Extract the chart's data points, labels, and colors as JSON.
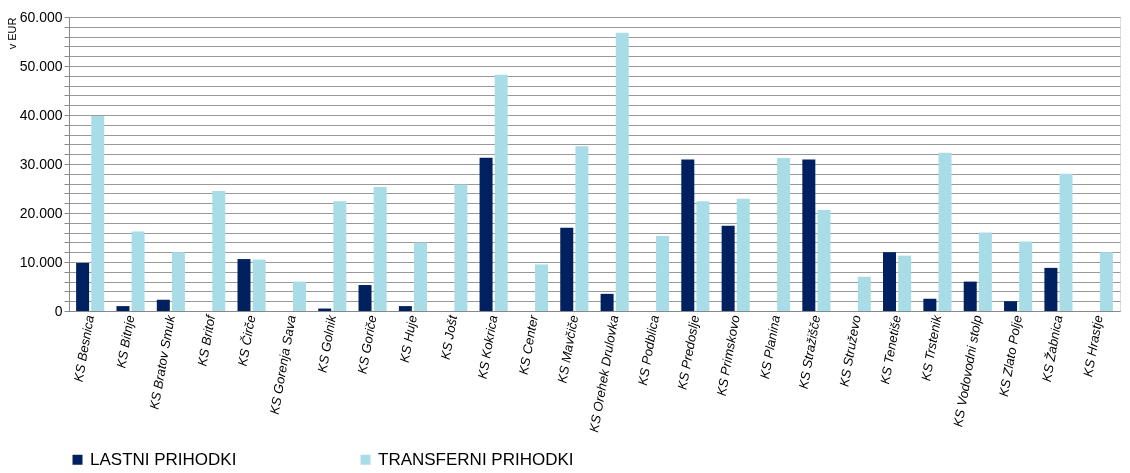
{
  "chart_data": {
    "type": "bar",
    "ylabel": "v EUR",
    "categories": [
      "KS Besnica",
      "KS Bitnje",
      "KS Bratov Smuk",
      "KS Britof",
      "KS Čirče",
      "KS Gorenja Sava",
      "KS Golnik",
      "KS Goriče",
      "KS Huje",
      "KS Jošt",
      "KS Kokrica",
      "KS Center",
      "KS Mavčiče",
      "KS Orehek Drulovka",
      "KS Podblica",
      "KS Predoslje",
      "KS Primskovo",
      "KS Planina",
      "KS Stražišče",
      "KS Struževo",
      "KS Tenetiše",
      "KS Trstenik",
      "KS Vodovodni stolp",
      "KS Zlato Polje",
      "KS Žabnica",
      "KS Hrastje"
    ],
    "series": [
      {
        "name": "LASTNI PRIHODKI",
        "color": "#002060",
        "values": [
          9800,
          1000,
          2300,
          null,
          10600,
          null,
          500,
          5300,
          1000,
          null,
          31300,
          null,
          17000,
          3500,
          null,
          30900,
          17400,
          null,
          30900,
          null,
          12000,
          2500,
          6000,
          2000,
          8800,
          null
        ]
      },
      {
        "name": "TRANSFERNI PRIHODKI",
        "color": "#a8dde8",
        "values": [
          39800,
          16200,
          12000,
          24500,
          10500,
          6000,
          22400,
          25300,
          14000,
          25800,
          48200,
          9500,
          33600,
          56800,
          15300,
          22400,
          22900,
          31200,
          20600,
          7000,
          11300,
          32300,
          16000,
          14200,
          28000,
          12000
        ]
      }
    ],
    "ylim": [
      0,
      60000
    ],
    "yticks": [
      {
        "value": 0,
        "label": "0"
      },
      {
        "value": 2000,
        "label": null
      },
      {
        "value": 4000,
        "label": null
      },
      {
        "value": 6000,
        "label": null
      },
      {
        "value": 8000,
        "label": null
      },
      {
        "value": 10000,
        "label": "10.000"
      },
      {
        "value": 12000,
        "label": null
      },
      {
        "value": 14000,
        "label": null
      },
      {
        "value": 16000,
        "label": null
      },
      {
        "value": 18000,
        "label": null
      },
      {
        "value": 20000,
        "label": "20.000"
      },
      {
        "value": 22000,
        "label": null
      },
      {
        "value": 24000,
        "label": null
      },
      {
        "value": 26000,
        "label": null
      },
      {
        "value": 28000,
        "label": null
      },
      {
        "value": 30000,
        "label": "30.000"
      },
      {
        "value": 32000,
        "label": null
      },
      {
        "value": 34000,
        "label": null
      },
      {
        "value": 36000,
        "label": null
      },
      {
        "value": 38000,
        "label": null
      },
      {
        "value": 40000,
        "label": "40.000"
      },
      {
        "value": 42000,
        "label": null
      },
      {
        "value": 44000,
        "label": null
      },
      {
        "value": 46000,
        "label": null
      },
      {
        "value": 48000,
        "label": null
      },
      {
        "value": 50000,
        "label": "50.000"
      },
      {
        "value": 52000,
        "label": null
      },
      {
        "value": 54000,
        "label": null
      },
      {
        "value": 56000,
        "label": null
      },
      {
        "value": 58000,
        "label": null
      },
      {
        "value": 60000,
        "label": "60.000"
      }
    ],
    "grid": "y",
    "legend": "bottom"
  }
}
